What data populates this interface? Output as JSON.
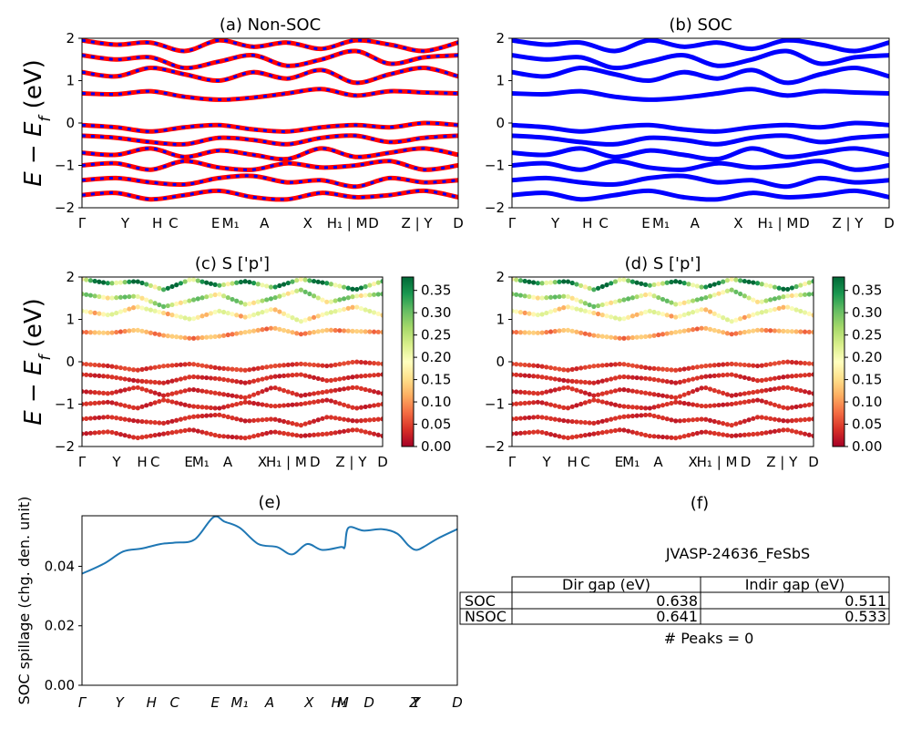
{
  "ylabel_energy": "E − E_f (eV)",
  "chart_data": [
    {
      "id": "a",
      "type": "line",
      "title": "(a) Non-SOC",
      "ylim": [
        -2,
        2
      ],
      "yticks": [
        "2",
        "1",
        "0",
        "−1",
        "−2"
      ],
      "kpath_labels": [
        "Γ",
        "Y",
        "H",
        "C",
        "E",
        "M₁",
        "A",
        "X",
        "H₁ | M",
        "D",
        "Z | Y",
        "D"
      ],
      "series": [
        {
          "color": "#ff0000",
          "style": "solid"
        },
        {
          "color": "#0000ff",
          "style": "dashed"
        }
      ],
      "bands": [
        [
          1.95,
          1.85,
          1.9,
          1.7,
          1.95,
          1.8,
          1.9,
          1.75,
          1.95,
          1.85,
          1.7,
          1.9
        ],
        [
          1.6,
          1.5,
          1.55,
          1.3,
          1.45,
          1.6,
          1.35,
          1.5,
          1.7,
          1.4,
          1.55,
          1.6
        ],
        [
          1.2,
          1.1,
          1.3,
          1.15,
          1.0,
          1.2,
          1.05,
          1.25,
          0.95,
          1.15,
          1.3,
          1.1
        ],
        [
          0.7,
          0.68,
          0.75,
          0.62,
          0.55,
          0.6,
          0.7,
          0.8,
          0.65,
          0.75,
          0.72,
          0.7
        ],
        [
          -0.05,
          -0.1,
          -0.2,
          -0.1,
          -0.05,
          -0.15,
          -0.2,
          -0.1,
          -0.05,
          -0.1,
          0.0,
          -0.05
        ],
        [
          -0.3,
          -0.35,
          -0.45,
          -0.5,
          -0.35,
          -0.4,
          -0.5,
          -0.35,
          -0.3,
          -0.45,
          -0.35,
          -0.3
        ],
        [
          -0.7,
          -0.75,
          -0.6,
          -0.8,
          -0.65,
          -0.75,
          -0.85,
          -0.6,
          -0.8,
          -0.7,
          -0.6,
          -0.75
        ],
        [
          -1.0,
          -0.95,
          -1.1,
          -0.9,
          -1.05,
          -1.1,
          -0.95,
          -1.05,
          -1.0,
          -0.9,
          -1.1,
          -1.0
        ],
        [
          -1.35,
          -1.3,
          -1.4,
          -1.45,
          -1.3,
          -1.25,
          -1.4,
          -1.35,
          -1.5,
          -1.3,
          -1.4,
          -1.35
        ],
        [
          -1.7,
          -1.65,
          -1.8,
          -1.7,
          -1.6,
          -1.75,
          -1.8,
          -1.65,
          -1.75,
          -1.7,
          -1.6,
          -1.75
        ]
      ]
    },
    {
      "id": "b",
      "type": "line",
      "title": "(b) SOC",
      "ylim": [
        -2,
        2
      ],
      "yticks": [
        "2",
        "1",
        "0",
        "−1",
        "−2"
      ],
      "kpath_labels": [
        "Γ",
        "Y",
        "H",
        "C",
        "E",
        "M₁",
        "A",
        "X",
        "H₁ | M",
        "D",
        "Z | Y",
        "D"
      ],
      "series": [
        {
          "color": "#0000ff",
          "style": "solid"
        }
      ],
      "bands": [
        [
          1.95,
          1.85,
          1.9,
          1.7,
          1.95,
          1.8,
          1.9,
          1.75,
          1.95,
          1.85,
          1.7,
          1.9
        ],
        [
          1.6,
          1.5,
          1.55,
          1.3,
          1.45,
          1.6,
          1.35,
          1.5,
          1.7,
          1.4,
          1.55,
          1.6
        ],
        [
          1.2,
          1.1,
          1.3,
          1.15,
          1.0,
          1.2,
          1.05,
          1.25,
          0.95,
          1.15,
          1.3,
          1.1
        ],
        [
          0.7,
          0.68,
          0.75,
          0.62,
          0.55,
          0.6,
          0.7,
          0.8,
          0.65,
          0.75,
          0.72,
          0.7
        ],
        [
          -0.05,
          -0.1,
          -0.2,
          -0.1,
          -0.05,
          -0.15,
          -0.2,
          -0.1,
          -0.05,
          -0.1,
          0.0,
          -0.05
        ],
        [
          -0.3,
          -0.35,
          -0.45,
          -0.5,
          -0.35,
          -0.4,
          -0.5,
          -0.35,
          -0.3,
          -0.45,
          -0.35,
          -0.3
        ],
        [
          -0.7,
          -0.75,
          -0.6,
          -0.8,
          -0.65,
          -0.75,
          -0.85,
          -0.6,
          -0.8,
          -0.7,
          -0.6,
          -0.75
        ],
        [
          -1.0,
          -0.95,
          -1.1,
          -0.9,
          -1.05,
          -1.1,
          -0.95,
          -1.05,
          -1.0,
          -0.9,
          -1.1,
          -1.0
        ],
        [
          -1.35,
          -1.3,
          -1.4,
          -1.45,
          -1.3,
          -1.25,
          -1.4,
          -1.35,
          -1.5,
          -1.3,
          -1.4,
          -1.35
        ],
        [
          -1.7,
          -1.65,
          -1.8,
          -1.7,
          -1.6,
          -1.75,
          -1.8,
          -1.65,
          -1.75,
          -1.7,
          -1.6,
          -1.75
        ]
      ]
    },
    {
      "id": "c",
      "type": "scatter",
      "title": "(c)  S ['p']",
      "ylim": [
        -2,
        2
      ],
      "yticks": [
        "2",
        "1",
        "0",
        "−1",
        "−2"
      ],
      "kpath_labels": [
        "Γ",
        "Y",
        "H",
        "C",
        "E",
        "M₁",
        "A",
        "X",
        "H₁ | M",
        "D",
        "Z | Y",
        "D"
      ],
      "colorbar": {
        "ticks": [
          "0.35",
          "0.30",
          "0.25",
          "0.20",
          "0.15",
          "0.10",
          "0.05",
          "0.00"
        ],
        "range": [
          0,
          0.38
        ],
        "colormap": "RdYlGn"
      },
      "bands": [
        [
          1.95,
          1.85,
          1.9,
          1.7,
          1.95,
          1.8,
          1.9,
          1.75,
          1.95,
          1.85,
          1.7,
          1.9
        ],
        [
          1.6,
          1.5,
          1.55,
          1.3,
          1.45,
          1.6,
          1.35,
          1.5,
          1.7,
          1.4,
          1.55,
          1.6
        ],
        [
          1.2,
          1.1,
          1.3,
          1.15,
          1.0,
          1.2,
          1.05,
          1.25,
          0.95,
          1.15,
          1.3,
          1.1
        ],
        [
          0.7,
          0.68,
          0.75,
          0.62,
          0.55,
          0.6,
          0.7,
          0.8,
          0.65,
          0.75,
          0.72,
          0.7
        ],
        [
          -0.05,
          -0.1,
          -0.2,
          -0.1,
          -0.05,
          -0.15,
          -0.2,
          -0.1,
          -0.05,
          -0.1,
          0.0,
          -0.05
        ],
        [
          -0.3,
          -0.35,
          -0.45,
          -0.5,
          -0.35,
          -0.4,
          -0.5,
          -0.35,
          -0.3,
          -0.45,
          -0.35,
          -0.3
        ],
        [
          -0.7,
          -0.75,
          -0.6,
          -0.8,
          -0.65,
          -0.75,
          -0.85,
          -0.6,
          -0.8,
          -0.7,
          -0.6,
          -0.75
        ],
        [
          -1.0,
          -0.95,
          -1.1,
          -0.9,
          -1.05,
          -1.1,
          -0.95,
          -1.05,
          -1.0,
          -0.9,
          -1.1,
          -1.0
        ],
        [
          -1.35,
          -1.3,
          -1.4,
          -1.45,
          -1.3,
          -1.25,
          -1.4,
          -1.35,
          -1.5,
          -1.3,
          -1.4,
          -1.35
        ],
        [
          -1.7,
          -1.65,
          -1.8,
          -1.7,
          -1.6,
          -1.75,
          -1.8,
          -1.65,
          -1.75,
          -1.7,
          -1.6,
          -1.75
        ]
      ],
      "band_weights": [
        0.28,
        0.22,
        0.16,
        0.1,
        0.04,
        0.03,
        0.03,
        0.03,
        0.03,
        0.03
      ]
    },
    {
      "id": "d",
      "type": "scatter",
      "title": "(d) S ['p']",
      "ylim": [
        -2,
        2
      ],
      "yticks": [
        "2",
        "1",
        "0",
        "−1",
        "−2"
      ],
      "kpath_labels": [
        "Γ",
        "Y",
        "H",
        "C",
        "E",
        "M₁",
        "A",
        "X",
        "H₁ | M",
        "D",
        "Z | Y",
        "D"
      ],
      "colorbar": {
        "ticks": [
          "0.35",
          "0.30",
          "0.25",
          "0.20",
          "0.15",
          "0.10",
          "0.05",
          "0.00"
        ],
        "range": [
          0,
          0.38
        ],
        "colormap": "RdYlGn"
      },
      "bands": [
        [
          1.95,
          1.85,
          1.9,
          1.7,
          1.95,
          1.8,
          1.9,
          1.75,
          1.95,
          1.85,
          1.7,
          1.9
        ],
        [
          1.6,
          1.5,
          1.55,
          1.3,
          1.45,
          1.6,
          1.35,
          1.5,
          1.7,
          1.4,
          1.55,
          1.6
        ],
        [
          1.2,
          1.1,
          1.3,
          1.15,
          1.0,
          1.2,
          1.05,
          1.25,
          0.95,
          1.15,
          1.3,
          1.1
        ],
        [
          0.7,
          0.68,
          0.75,
          0.62,
          0.55,
          0.6,
          0.7,
          0.8,
          0.65,
          0.75,
          0.72,
          0.7
        ],
        [
          -0.05,
          -0.1,
          -0.2,
          -0.1,
          -0.05,
          -0.15,
          -0.2,
          -0.1,
          -0.05,
          -0.1,
          0.0,
          -0.05
        ],
        [
          -0.3,
          -0.35,
          -0.45,
          -0.5,
          -0.35,
          -0.4,
          -0.5,
          -0.35,
          -0.3,
          -0.45,
          -0.35,
          -0.3
        ],
        [
          -0.7,
          -0.75,
          -0.6,
          -0.8,
          -0.65,
          -0.75,
          -0.85,
          -0.6,
          -0.8,
          -0.7,
          -0.6,
          -0.75
        ],
        [
          -1.0,
          -0.95,
          -1.1,
          -0.9,
          -1.05,
          -1.1,
          -0.95,
          -1.05,
          -1.0,
          -0.9,
          -1.1,
          -1.0
        ],
        [
          -1.35,
          -1.3,
          -1.4,
          -1.45,
          -1.3,
          -1.25,
          -1.4,
          -1.35,
          -1.5,
          -1.3,
          -1.4,
          -1.35
        ],
        [
          -1.7,
          -1.65,
          -1.8,
          -1.7,
          -1.6,
          -1.75,
          -1.8,
          -1.65,
          -1.75,
          -1.7,
          -1.6,
          -1.75
        ]
      ],
      "band_weights": [
        0.28,
        0.22,
        0.16,
        0.1,
        0.04,
        0.03,
        0.03,
        0.03,
        0.03,
        0.03
      ]
    },
    {
      "id": "e",
      "type": "line",
      "title": "(e)",
      "ylabel": "SOC spillage (chg. den. unit)",
      "ylim": [
        0,
        0.057
      ],
      "yticks": [
        "0.04",
        "0.02",
        "0.00"
      ],
      "kpath_labels": [
        "Γ",
        "Y",
        "H",
        "C",
        "E",
        "M₁",
        "A",
        "X",
        "H₁",
        "M",
        "D",
        "Z",
        "Y",
        "D"
      ],
      "line_color": "#1f77b4",
      "x": [
        0,
        0.06,
        0.11,
        0.16,
        0.21,
        0.25,
        0.3,
        0.35,
        0.38,
        0.42,
        0.47,
        0.52,
        0.56,
        0.6,
        0.64,
        0.69,
        0.7,
        0.71,
        0.75,
        0.8,
        0.84,
        0.87,
        0.89,
        0.91,
        0.95,
        1.0
      ],
      "y": [
        0.0375,
        0.041,
        0.045,
        0.046,
        0.0475,
        0.048,
        0.049,
        0.0565,
        0.055,
        0.053,
        0.0475,
        0.0465,
        0.044,
        0.0475,
        0.0455,
        0.0465,
        0.0465,
        0.053,
        0.052,
        0.0525,
        0.051,
        0.047,
        0.0455,
        0.0465,
        0.0495,
        0.0525
      ]
    }
  ],
  "table": {
    "title": "(f)",
    "material": "JVASP-24636_FeSbS",
    "headers": [
      "",
      "Dir gap (eV)",
      "Indir gap (eV)"
    ],
    "rows": [
      [
        "SOC",
        "0.638",
        "0.511"
      ],
      [
        "NSOC",
        "0.641",
        "0.533"
      ]
    ],
    "peaks": "# Peaks = 0"
  }
}
